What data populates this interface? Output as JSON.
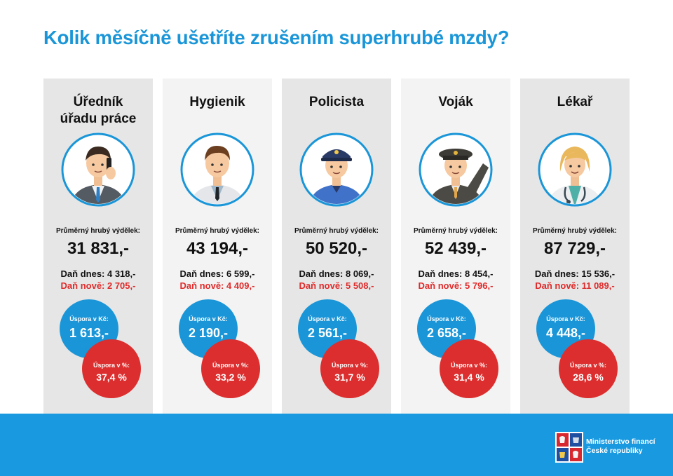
{
  "title": "Kolik měsíčně ušetříte zrušením superhrubé mzdy?",
  "colors": {
    "accent_blue": "#1a96d8",
    "accent_red": "#dc2e2e",
    "footer_blue": "#199ae0",
    "column_grey": "#e6e6e6"
  },
  "columns": [
    {
      "job_lines": [
        "Úředník",
        "úřadu práce"
      ],
      "icon": "clerk-on-phone-icon",
      "salary_label": "Průměrný hrubý výdělek:",
      "salary": "31 831,-",
      "tax_now": "Daň dnes: 4 318,-",
      "tax_new": "Daň nově: 2 705,-",
      "save_kc_label": "Úspora v Kč:",
      "save_kc": "1 613,-",
      "save_pct_label": "Úspora v %:",
      "save_pct": "37,4 %"
    },
    {
      "job_lines": [
        "Hygienik"
      ],
      "icon": "hygienist-icon",
      "salary_label": "Průměrný hrubý výdělek:",
      "salary": "43 194,-",
      "tax_now": "Daň dnes: 6 599,-",
      "tax_new": "Daň nově: 4 409,-",
      "save_kc_label": "Úspora v Kč:",
      "save_kc": "2 190,-",
      "save_pct_label": "Úspora v %:",
      "save_pct": "33,2 %"
    },
    {
      "job_lines": [
        "Policista"
      ],
      "icon": "police-officer-icon",
      "salary_label": "Průměrný hrubý výdělek:",
      "salary": "50 520,-",
      "tax_now": "Daň dnes: 8 069,-",
      "tax_new": "Daň nově: 5 508,-",
      "save_kc_label": "Úspora v Kč:",
      "save_kc": "2 561,-",
      "save_pct_label": "Úspora v %:",
      "save_pct": "31,7 %"
    },
    {
      "job_lines": [
        "Voják"
      ],
      "icon": "soldier-saluting-icon",
      "salary_label": "Průměrný hrubý výdělek:",
      "salary": "52 439,-",
      "tax_now": "Daň dnes: 8 454,-",
      "tax_new": "Daň nově: 5 796,-",
      "save_kc_label": "Úspora v Kč:",
      "save_kc": "2 658,-",
      "save_pct_label": "Úspora v %:",
      "save_pct": "31,4 %"
    },
    {
      "job_lines": [
        "Lékař"
      ],
      "icon": "doctor-icon",
      "salary_label": "Průměrný hrubý výdělek:",
      "salary": "87 729,-",
      "tax_now": "Daň dnes: 15 536,-",
      "tax_new": "Daň nově: 11 089,-",
      "save_kc_label": "Úspora v Kč:",
      "save_kc": "4 448,-",
      "save_pct_label": "Úspora v %:",
      "save_pct": "28,6 %"
    }
  ],
  "footer": {
    "logo_icon": "ministry-coat-of-arms-icon",
    "org_line1": "Ministerstvo financí",
    "org_line2": "České republiky"
  }
}
